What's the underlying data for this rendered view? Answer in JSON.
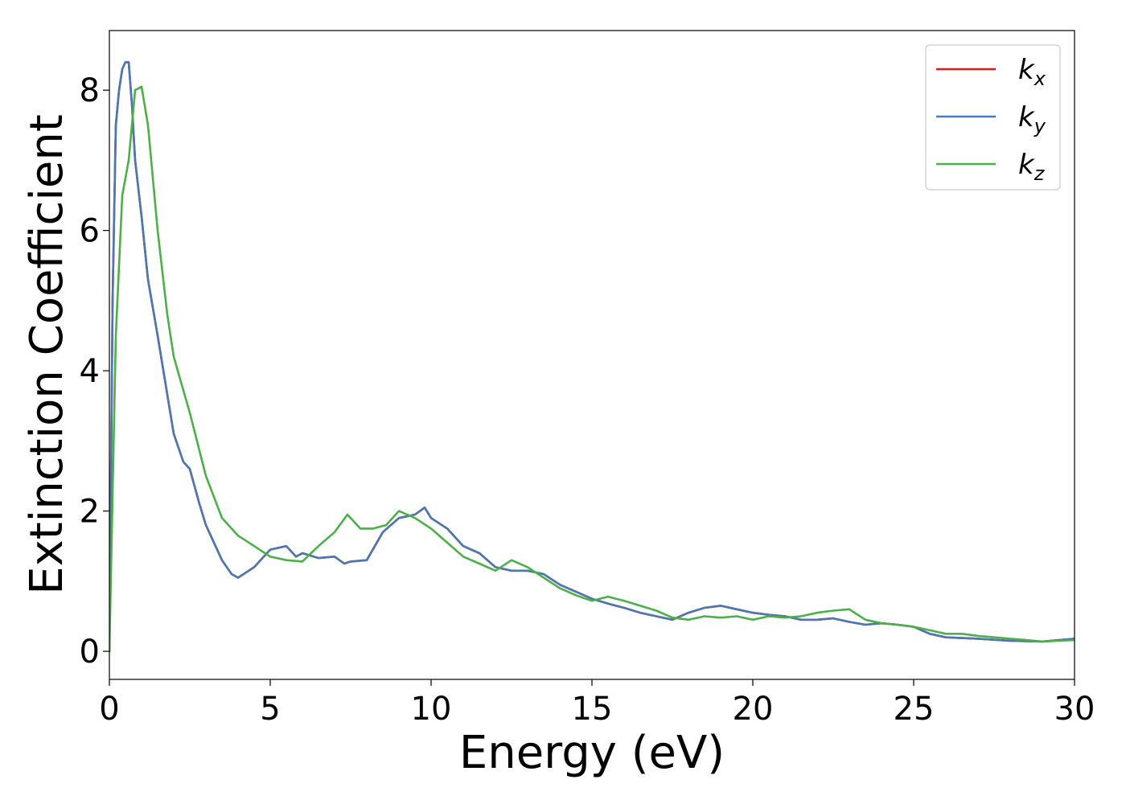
{
  "chart_data": {
    "type": "line",
    "xlabel": "Energy (eV)",
    "ylabel": "Extinction Coefficient",
    "xlim": [
      0,
      30
    ],
    "ylim": [
      -0.4,
      8.85
    ],
    "xticks": [
      "0",
      "5",
      "10",
      "15",
      "20",
      "25",
      "30"
    ],
    "yticks": [
      "0",
      "2",
      "4",
      "6",
      "8"
    ],
    "grid": false,
    "legend_position": "top-right",
    "series": [
      {
        "name": "k",
        "sub": "x",
        "color": "#e41a1c",
        "x": [
          0,
          0.1,
          0.2,
          0.3,
          0.4,
          0.5,
          0.6,
          0.7,
          0.8,
          1.0,
          1.2,
          1.5,
          2.0,
          2.3,
          2.5,
          2.8,
          3.0,
          3.5,
          3.8,
          4.0,
          4.5,
          5.0,
          5.5,
          5.8,
          6.0,
          6.5,
          7.0,
          7.3,
          7.5,
          8.0,
          8.5,
          9.0,
          9.5,
          9.8,
          10.0,
          10.5,
          11.0,
          11.5,
          12.0,
          12.5,
          13.0,
          13.5,
          14.0,
          14.5,
          15.0,
          15.5,
          16.0,
          16.5,
          17.0,
          17.5,
          18.0,
          18.5,
          19.0,
          19.5,
          20.0,
          20.5,
          21.0,
          21.5,
          22.0,
          22.5,
          23.0,
          23.5,
          24.0,
          24.5,
          25.0,
          25.5,
          26.0,
          27.0,
          28.0,
          29.0,
          30.0
        ],
        "y": [
          0,
          5.0,
          7.5,
          8.0,
          8.3,
          8.4,
          8.4,
          7.8,
          7.0,
          6.2,
          5.3,
          4.5,
          3.1,
          2.7,
          2.6,
          2.1,
          1.8,
          1.3,
          1.1,
          1.05,
          1.2,
          1.45,
          1.5,
          1.35,
          1.4,
          1.33,
          1.35,
          1.25,
          1.28,
          1.3,
          1.7,
          1.9,
          1.95,
          2.05,
          1.9,
          1.75,
          1.5,
          1.4,
          1.2,
          1.15,
          1.15,
          1.1,
          0.95,
          0.85,
          0.75,
          0.68,
          0.62,
          0.55,
          0.5,
          0.45,
          0.55,
          0.62,
          0.65,
          0.6,
          0.55,
          0.52,
          0.5,
          0.45,
          0.45,
          0.47,
          0.42,
          0.38,
          0.4,
          0.38,
          0.35,
          0.25,
          0.2,
          0.18,
          0.15,
          0.14,
          0.18
        ]
      },
      {
        "name": "k",
        "sub": "y",
        "color": "#4a78b0",
        "x": [
          0,
          0.1,
          0.2,
          0.3,
          0.4,
          0.5,
          0.6,
          0.7,
          0.8,
          1.0,
          1.2,
          1.5,
          2.0,
          2.3,
          2.5,
          2.8,
          3.0,
          3.5,
          3.8,
          4.0,
          4.5,
          5.0,
          5.5,
          5.8,
          6.0,
          6.5,
          7.0,
          7.3,
          7.5,
          8.0,
          8.5,
          9.0,
          9.5,
          9.8,
          10.0,
          10.5,
          11.0,
          11.5,
          12.0,
          12.5,
          13.0,
          13.5,
          14.0,
          14.5,
          15.0,
          15.5,
          16.0,
          16.5,
          17.0,
          17.5,
          18.0,
          18.5,
          19.0,
          19.5,
          20.0,
          20.5,
          21.0,
          21.5,
          22.0,
          22.5,
          23.0,
          23.5,
          24.0,
          24.5,
          25.0,
          25.5,
          26.0,
          27.0,
          28.0,
          29.0,
          30.0
        ],
        "y": [
          0,
          5.0,
          7.5,
          8.0,
          8.3,
          8.4,
          8.4,
          7.8,
          7.0,
          6.2,
          5.3,
          4.5,
          3.1,
          2.7,
          2.6,
          2.1,
          1.8,
          1.3,
          1.1,
          1.05,
          1.2,
          1.45,
          1.5,
          1.35,
          1.4,
          1.33,
          1.35,
          1.25,
          1.28,
          1.3,
          1.7,
          1.9,
          1.95,
          2.05,
          1.9,
          1.75,
          1.5,
          1.4,
          1.2,
          1.15,
          1.15,
          1.1,
          0.95,
          0.85,
          0.75,
          0.68,
          0.62,
          0.55,
          0.5,
          0.45,
          0.55,
          0.62,
          0.65,
          0.6,
          0.55,
          0.52,
          0.5,
          0.45,
          0.45,
          0.47,
          0.42,
          0.38,
          0.4,
          0.38,
          0.35,
          0.25,
          0.2,
          0.18,
          0.15,
          0.14,
          0.18
        ]
      },
      {
        "name": "k",
        "sub": "z",
        "color": "#4daf4a",
        "x": [
          0,
          0.2,
          0.4,
          0.6,
          0.8,
          1.0,
          1.2,
          1.5,
          1.8,
          2.0,
          2.5,
          3.0,
          3.5,
          4.0,
          4.5,
          5.0,
          5.5,
          6.0,
          6.5,
          7.0,
          7.4,
          7.8,
          8.2,
          8.6,
          9.0,
          9.5,
          10.0,
          10.5,
          11.0,
          11.5,
          12.0,
          12.5,
          13.0,
          13.5,
          14.0,
          14.5,
          15.0,
          15.5,
          16.0,
          16.5,
          17.0,
          17.5,
          18.0,
          18.5,
          19.0,
          19.5,
          20.0,
          20.5,
          21.0,
          21.5,
          22.0,
          22.5,
          23.0,
          23.5,
          24.0,
          24.5,
          25.0,
          25.5,
          26.0,
          26.5,
          27.0,
          27.5,
          28.0,
          28.5,
          29.0,
          29.5,
          30.0
        ],
        "y": [
          0,
          4.5,
          6.5,
          7.0,
          8.0,
          8.05,
          7.5,
          6.0,
          4.8,
          4.2,
          3.4,
          2.5,
          1.9,
          1.65,
          1.5,
          1.35,
          1.3,
          1.28,
          1.5,
          1.7,
          1.95,
          1.75,
          1.75,
          1.8,
          2.0,
          1.9,
          1.75,
          1.55,
          1.35,
          1.25,
          1.15,
          1.3,
          1.2,
          1.05,
          0.9,
          0.8,
          0.72,
          0.78,
          0.72,
          0.65,
          0.58,
          0.48,
          0.45,
          0.5,
          0.48,
          0.5,
          0.45,
          0.5,
          0.48,
          0.5,
          0.55,
          0.58,
          0.6,
          0.45,
          0.4,
          0.38,
          0.35,
          0.3,
          0.25,
          0.25,
          0.22,
          0.2,
          0.18,
          0.16,
          0.14,
          0.15,
          0.16
        ]
      }
    ]
  }
}
